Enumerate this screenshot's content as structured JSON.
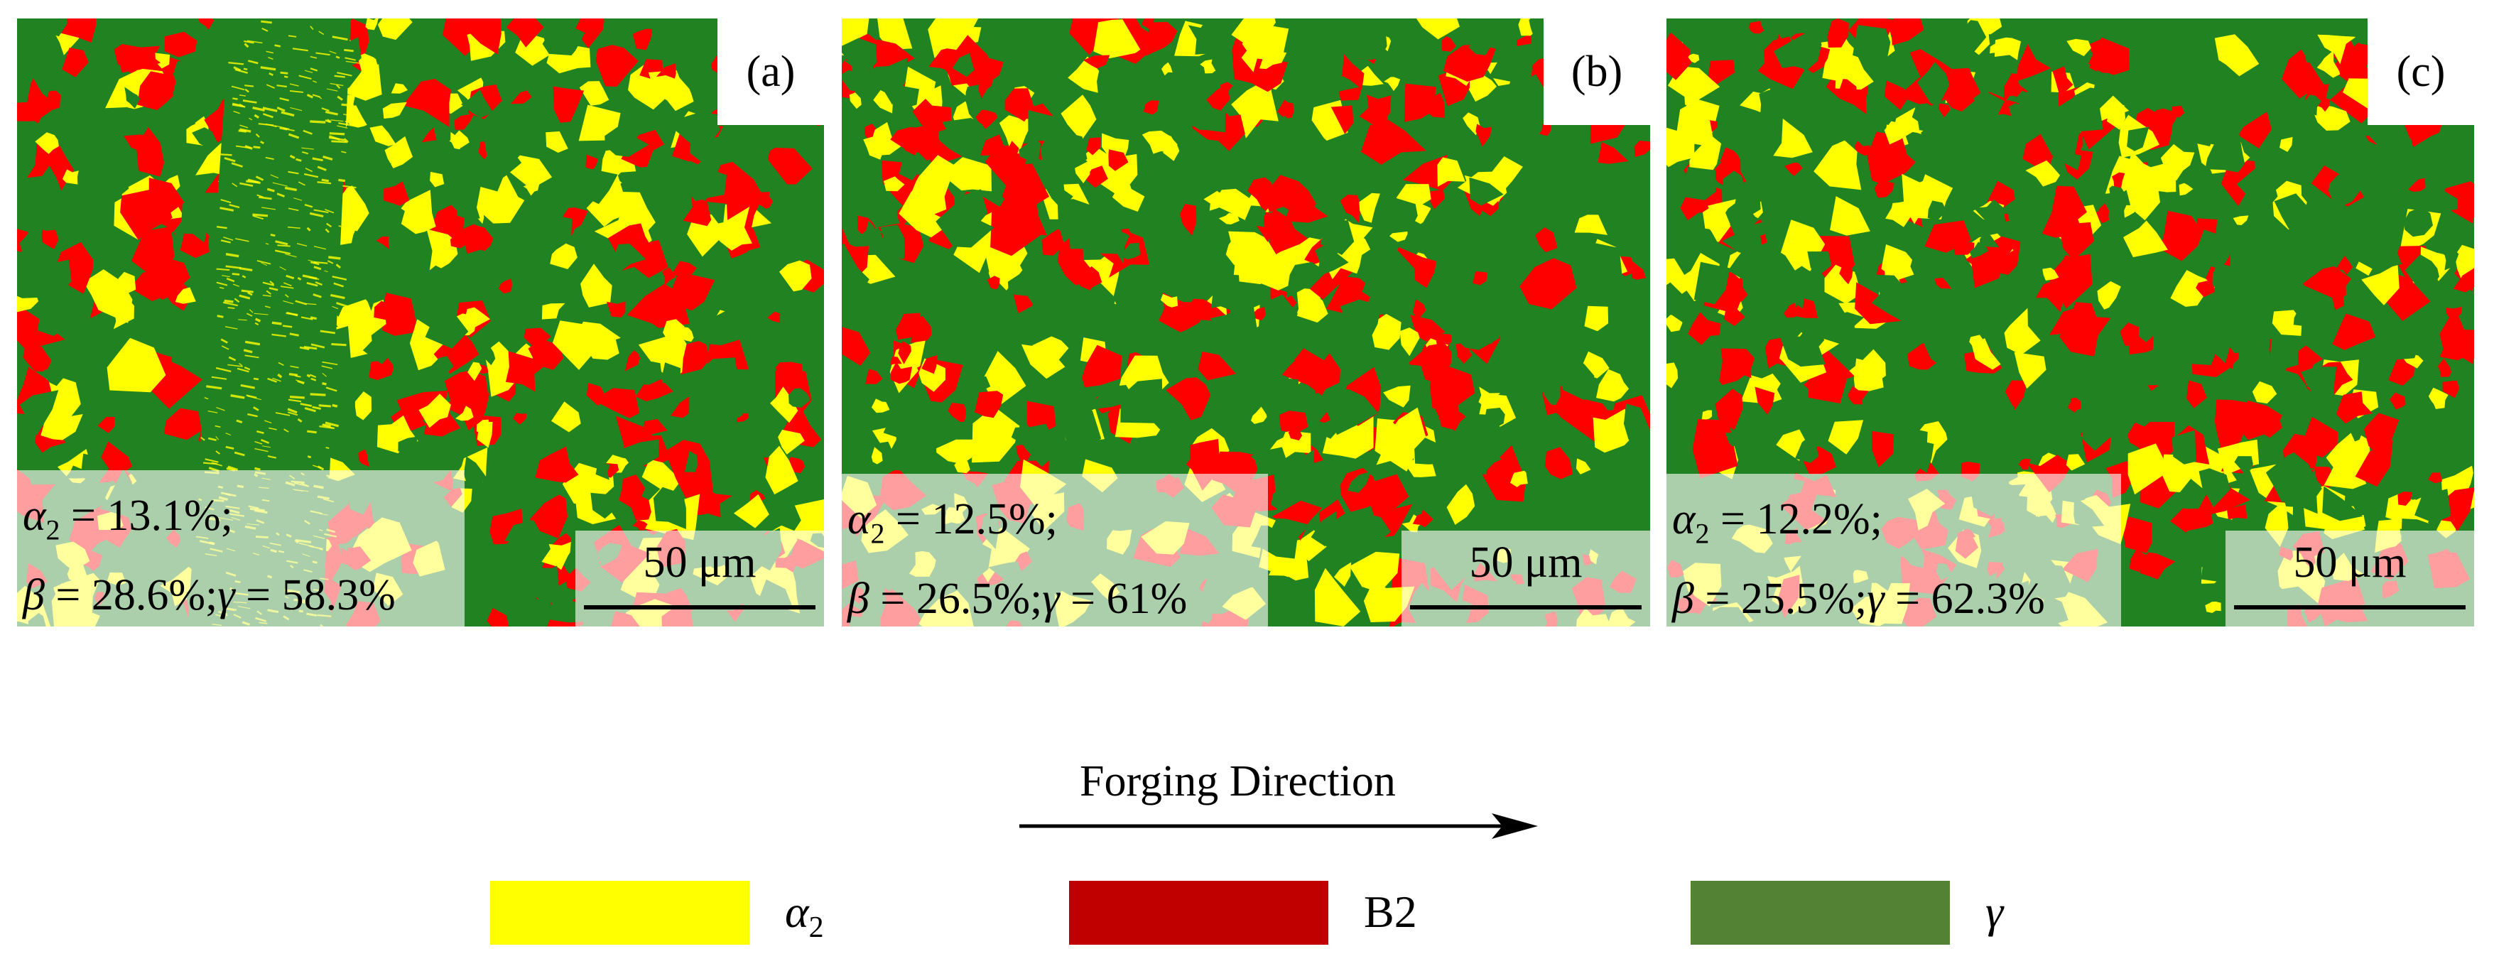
{
  "colors": {
    "alpha2": "#ffff00",
    "b2": "#c00000",
    "gamma": "#548235",
    "map_red": "#ff0000",
    "map_green": "#218221",
    "map_yellow": "#ffff00"
  },
  "panels": [
    {
      "id": "a",
      "label": "(a)",
      "alpha_label": "α",
      "alpha_sub": "2",
      "alpha_value": " = 13.1%;",
      "beta_label": "β",
      "beta_value": " = 28.6%;",
      "gamma_label": "γ",
      "gamma_value": " = 58.3%",
      "scale": "50 μm",
      "fractions": {
        "alpha2": 13.1,
        "beta": 28.6,
        "gamma": 58.3
      }
    },
    {
      "id": "b",
      "label": "(b)",
      "alpha_label": "α",
      "alpha_sub": "2",
      "alpha_value": " = 12.5%;",
      "beta_label": "β",
      "beta_value": " = 26.5%;",
      "gamma_label": "γ",
      "gamma_value": " = 61%",
      "scale": "50 μm",
      "fractions": {
        "alpha2": 12.5,
        "beta": 26.5,
        "gamma": 61
      }
    },
    {
      "id": "c",
      "label": "(c)",
      "alpha_label": "α",
      "alpha_sub": "2",
      "alpha_value": " = 12.2%;",
      "beta_label": "β",
      "beta_value": " = 25.5%;",
      "gamma_label": "γ",
      "gamma_value": " = 62.3%",
      "scale": "50 μm",
      "fractions": {
        "alpha2": 12.2,
        "beta": 25.5,
        "gamma": 62.3
      }
    }
  ],
  "direction": {
    "label": "Forging Direction"
  },
  "legend": [
    {
      "symbol": "α",
      "sub": "2",
      "color": "#ffff00"
    },
    {
      "symbol": "B2",
      "sub": "",
      "color": "#c00000"
    },
    {
      "symbol": "γ",
      "sub": "",
      "color": "#548235"
    }
  ]
}
